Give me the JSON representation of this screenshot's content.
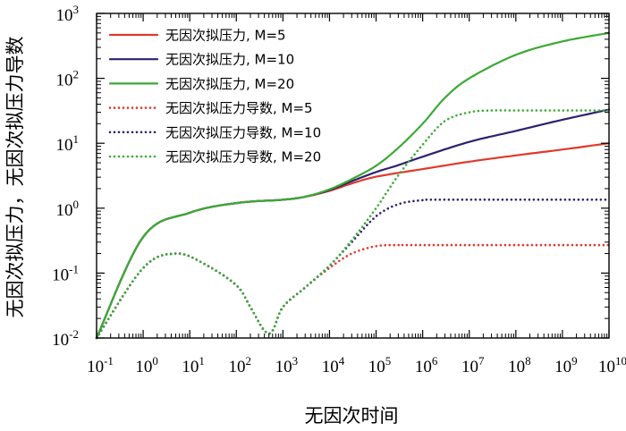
{
  "chart_data": {
    "type": "line",
    "xscale": "log",
    "yscale": "log",
    "xlim": [
      0.1,
      10000000000
    ],
    "ylim": [
      0.01,
      1000
    ],
    "xlabel": "无因次时间",
    "ylabel": "无因次拟压力，无因次拟压力导数",
    "x_ticks": [
      {
        "base": "10",
        "exp": "-1"
      },
      {
        "base": "10",
        "exp": "0"
      },
      {
        "base": "10",
        "exp": "1"
      },
      {
        "base": "10",
        "exp": "2"
      },
      {
        "base": "10",
        "exp": "3"
      },
      {
        "base": "10",
        "exp": "4"
      },
      {
        "base": "10",
        "exp": "5"
      },
      {
        "base": "10",
        "exp": "6"
      },
      {
        "base": "10",
        "exp": "7"
      },
      {
        "base": "10",
        "exp": "8"
      },
      {
        "base": "10",
        "exp": "9"
      },
      {
        "base": "10",
        "exp": "10"
      }
    ],
    "y_ticks": [
      {
        "base": "10",
        "exp": "-2"
      },
      {
        "base": "10",
        "exp": "-1"
      },
      {
        "base": "10",
        "exp": "0"
      },
      {
        "base": "10",
        "exp": "1"
      },
      {
        "base": "10",
        "exp": "2"
      },
      {
        "base": "10",
        "exp": "3"
      }
    ],
    "legend_position": "top-left",
    "series": [
      {
        "name": "无因次拟压力, M=5",
        "color": "#e0392b",
        "style": "solid",
        "x": [
          0.1,
          1,
          10,
          100,
          1000,
          3000,
          10000,
          30000,
          100000,
          1000000,
          10000000,
          100000000,
          1000000000,
          10000000000
        ],
        "y": [
          0.01,
          0.36,
          0.85,
          1.2,
          1.35,
          1.5,
          1.85,
          2.4,
          3.05,
          4.0,
          5.2,
          6.5,
          8.0,
          10.0
        ]
      },
      {
        "name": "无因次拟压力, M=10",
        "color": "#2d2170",
        "style": "solid",
        "x": [
          0.1,
          1,
          10,
          100,
          1000,
          3000,
          10000,
          30000,
          100000,
          300000,
          1000000,
          10000000,
          100000000,
          1000000000,
          10000000000
        ],
        "y": [
          0.01,
          0.36,
          0.85,
          1.2,
          1.35,
          1.5,
          1.9,
          2.6,
          3.6,
          4.6,
          6.2,
          10.5,
          15.5,
          23.0,
          33.0
        ]
      },
      {
        "name": "无因次拟压力, M=20",
        "color": "#3aaa35",
        "style": "solid",
        "x": [
          0.1,
          1,
          10,
          100,
          1000,
          3000,
          10000,
          30000,
          100000,
          300000,
          1000000,
          3000000,
          10000000,
          100000000,
          1000000000,
          10000000000
        ],
        "y": [
          0.01,
          0.36,
          0.85,
          1.2,
          1.35,
          1.5,
          1.95,
          2.8,
          4.5,
          8.5,
          20.0,
          50.0,
          100.0,
          230.0,
          370.0,
          500.0
        ]
      },
      {
        "name": "无因次拟压力导数, M=5",
        "color": "#e0392b",
        "style": "dotted",
        "x": [
          0.1,
          1,
          5,
          20,
          100,
          200,
          400,
          600,
          1000,
          3000,
          10000,
          30000,
          100000,
          300000,
          1000000,
          10000000000
        ],
        "y": [
          0.01,
          0.12,
          0.2,
          0.14,
          0.065,
          0.03,
          0.013,
          0.013,
          0.03,
          0.06,
          0.12,
          0.2,
          0.26,
          0.27,
          0.27,
          0.27
        ]
      },
      {
        "name": "无因次拟压力导数, M=10",
        "color": "#2d2170",
        "style": "dotted",
        "x": [
          0.1,
          1,
          5,
          20,
          100,
          200,
          400,
          600,
          1000,
          3000,
          10000,
          30000,
          100000,
          300000,
          1000000,
          3000000,
          10000000000
        ],
        "y": [
          0.01,
          0.12,
          0.2,
          0.14,
          0.065,
          0.03,
          0.013,
          0.013,
          0.03,
          0.06,
          0.13,
          0.3,
          0.75,
          1.15,
          1.33,
          1.35,
          1.35
        ]
      },
      {
        "name": "无因次拟压力导数, M=20",
        "color": "#3aaa35",
        "style": "dotted",
        "x": [
          0.1,
          1,
          5,
          20,
          100,
          200,
          400,
          600,
          1000,
          3000,
          10000,
          30000,
          100000,
          300000,
          1000000,
          3000000,
          10000000,
          30000000,
          100000000,
          1000000000,
          10000000000
        ],
        "y": [
          0.01,
          0.12,
          0.2,
          0.14,
          0.065,
          0.03,
          0.013,
          0.013,
          0.03,
          0.06,
          0.13,
          0.32,
          1.0,
          3.2,
          9.5,
          22.0,
          30.0,
          32.0,
          32.0,
          32.0,
          32.0
        ]
      }
    ]
  }
}
